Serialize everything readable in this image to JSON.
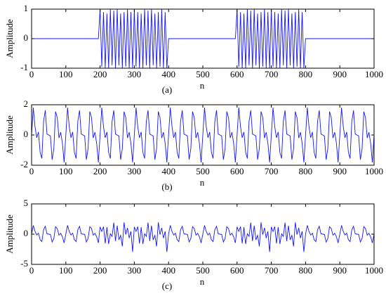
{
  "chart_data": [
    {
      "type": "line",
      "caption": "(a)",
      "x_label": "n",
      "y_label": "Amplitude",
      "color": "#1414ff",
      "xlim": [
        0,
        1000
      ],
      "xticks": [
        0,
        100,
        200,
        300,
        400,
        500,
        600,
        700,
        800,
        900,
        1000
      ],
      "ylim": [
        -1,
        1
      ],
      "yticks": [
        -1,
        0,
        1
      ],
      "x": [
        0,
        5,
        10,
        15,
        20,
        25,
        30,
        35,
        40,
        45,
        50,
        55,
        60,
        65,
        70,
        75,
        80,
        85,
        90,
        95,
        100,
        105,
        110,
        115,
        120,
        125,
        130,
        135,
        140,
        145,
        150,
        155,
        160,
        165,
        170,
        175,
        180,
        185,
        190,
        195,
        200,
        205,
        210,
        215,
        220,
        225,
        230,
        235,
        240,
        245,
        250,
        255,
        260,
        265,
        270,
        275,
        280,
        285,
        290,
        295,
        300,
        305,
        310,
        315,
        320,
        325,
        330,
        335,
        340,
        345,
        350,
        355,
        360,
        365,
        370,
        375,
        380,
        385,
        390,
        395,
        400,
        405,
        410,
        415,
        420,
        425,
        430,
        435,
        440,
        445,
        450,
        455,
        460,
        465,
        470,
        475,
        480,
        485,
        490,
        495,
        500,
        505,
        510,
        515,
        520,
        525,
        530,
        535,
        540,
        545,
        550,
        555,
        560,
        565,
        570,
        575,
        580,
        585,
        590,
        595,
        600,
        605,
        610,
        615,
        620,
        625,
        630,
        635,
        640,
        645,
        650,
        655,
        660,
        665,
        670,
        675,
        680,
        685,
        690,
        695,
        700,
        705,
        710,
        715,
        720,
        725,
        730,
        735,
        740,
        745,
        750,
        755,
        760,
        765,
        770,
        775,
        780,
        785,
        790,
        795,
        800,
        805,
        810,
        815,
        820,
        825,
        830,
        835,
        840,
        845,
        850,
        855,
        860,
        865,
        870,
        875,
        880,
        885,
        890,
        895,
        900,
        905,
        910,
        915,
        920,
        925,
        930,
        935,
        940,
        945,
        950,
        955,
        960,
        965,
        970,
        975,
        980,
        985,
        990,
        995,
        1000
      ],
      "values": [
        0,
        0,
        0,
        0,
        0,
        0,
        0,
        0,
        0,
        0,
        0,
        0,
        0,
        0,
        0,
        0,
        0,
        0,
        0,
        0,
        0,
        0,
        0,
        0,
        0,
        0,
        0,
        0,
        0,
        0,
        0,
        0,
        0,
        0,
        0,
        0,
        0,
        0,
        0,
        0,
        1,
        -0.95,
        0.9,
        -1,
        0.85,
        -1,
        1,
        -0.9,
        0.95,
        -1,
        1,
        -0.9,
        0.85,
        -1,
        0.9,
        -0.95,
        1,
        -1,
        0.9,
        -1,
        1,
        -0.95,
        0.9,
        -1,
        0.85,
        -1,
        1,
        -0.9,
        0.95,
        -1,
        1,
        -0.9,
        0.85,
        -1,
        0.9,
        -0.95,
        1,
        -1,
        0.9,
        -1,
        0,
        0,
        0,
        0,
        0,
        0,
        0,
        0,
        0,
        0,
        0,
        0,
        0,
        0,
        0,
        0,
        0,
        0,
        0,
        0,
        0,
        0,
        0,
        0,
        0,
        0,
        0,
        0,
        0,
        0,
        0,
        0,
        0,
        0,
        0,
        0,
        0,
        0,
        0,
        0,
        1,
        -0.95,
        0.9,
        -1,
        0.85,
        -1,
        1,
        -0.9,
        0.95,
        -1,
        1,
        -0.9,
        0.85,
        -1,
        0.9,
        -0.95,
        1,
        -1,
        0.9,
        -1,
        1,
        -0.95,
        0.9,
        -1,
        0.85,
        -1,
        1,
        -0.9,
        0.95,
        -1,
        1,
        -0.9,
        0.85,
        -1,
        0.9,
        -0.95,
        1,
        -1,
        0.9,
        -1,
        0,
        0,
        0,
        0,
        0,
        0,
        0,
        0,
        0,
        0,
        0,
        0,
        0,
        0,
        0,
        0,
        0,
        0,
        0,
        0,
        0,
        0,
        0,
        0,
        0,
        0,
        0,
        0,
        0,
        0,
        0,
        0,
        0,
        0,
        0,
        0,
        0,
        0,
        0,
        0,
        0
      ]
    },
    {
      "type": "line",
      "caption": "(b)",
      "x_label": "n",
      "y_label": "Amplitude",
      "color": "#1414ff",
      "xlim": [
        0,
        1000
      ],
      "xticks": [
        0,
        100,
        200,
        300,
        400,
        500,
        600,
        700,
        800,
        900,
        1000
      ],
      "ylim": [
        -2,
        2
      ],
      "yticks": [
        -2,
        0,
        2
      ],
      "x": [
        0,
        5,
        10,
        15,
        20,
        25,
        30,
        35,
        40,
        45,
        50,
        55,
        60,
        65,
        70,
        75,
        80,
        85,
        90,
        95,
        100,
        105,
        110,
        115,
        120,
        125,
        130,
        135,
        140,
        145,
        150,
        155,
        160,
        165,
        170,
        175,
        180,
        185,
        190,
        195,
        200,
        205,
        210,
        215,
        220,
        225,
        230,
        235,
        240,
        245,
        250,
        255,
        260,
        265,
        270,
        275,
        280,
        285,
        290,
        295,
        300,
        305,
        310,
        315,
        320,
        325,
        330,
        335,
        340,
        345,
        350,
        355,
        360,
        365,
        370,
        375,
        380,
        385,
        390,
        395,
        400,
        405,
        410,
        415,
        420,
        425,
        430,
        435,
        440,
        445,
        450,
        455,
        460,
        465,
        470,
        475,
        480,
        485,
        490,
        495,
        500,
        505,
        510,
        515,
        520,
        525,
        530,
        535,
        540,
        545,
        550,
        555,
        560,
        565,
        570,
        575,
        580,
        585,
        590,
        595,
        600,
        605,
        610,
        615,
        620,
        625,
        630,
        635,
        640,
        645,
        650,
        655,
        660,
        665,
        670,
        675,
        680,
        685,
        690,
        695,
        700,
        705,
        710,
        715,
        720,
        725,
        730,
        735,
        740,
        745,
        750,
        755,
        760,
        765,
        770,
        775,
        780,
        785,
        790,
        795,
        800,
        805,
        810,
        815,
        820,
        825,
        830,
        835,
        840,
        845,
        850,
        855,
        860,
        865,
        870,
        875,
        880,
        885,
        890,
        895,
        900,
        905,
        910,
        915,
        920,
        925,
        930,
        935,
        940,
        945,
        950,
        955,
        960,
        965,
        970,
        975,
        980,
        985,
        990,
        995,
        1000
      ],
      "values": [
        0,
        1.81,
        0.55,
        -0.18,
        0.2,
        -1.15,
        -1.55,
        0.9,
        1.63,
        0.06,
        0,
        -0.06,
        -1.63,
        -0.9,
        1.55,
        1.15,
        -0.2,
        0.18,
        -0.55,
        -1.81,
        0,
        1.81,
        0.55,
        -0.18,
        0.2,
        -1.15,
        -1.55,
        0.9,
        1.63,
        0.06,
        0,
        -0.06,
        -1.63,
        -0.9,
        1.55,
        1.15,
        -0.2,
        0.18,
        -0.55,
        -1.81,
        0,
        1.81,
        0.55,
        -0.18,
        0.2,
        -1.15,
        -1.55,
        0.9,
        1.63,
        0.06,
        0,
        -0.06,
        -1.63,
        -0.9,
        1.55,
        1.15,
        -0.2,
        0.18,
        -0.55,
        -1.81,
        0,
        1.81,
        0.55,
        -0.18,
        0.2,
        -1.15,
        -1.55,
        0.9,
        1.63,
        0.06,
        0,
        -0.06,
        -1.63,
        -0.9,
        1.55,
        1.15,
        -0.2,
        0.18,
        -0.55,
        -1.81,
        0,
        1.81,
        0.55,
        -0.18,
        0.2,
        -1.15,
        -1.55,
        0.9,
        1.63,
        0.06,
        0,
        -0.06,
        -1.63,
        -0.9,
        1.55,
        1.15,
        -0.2,
        0.18,
        -0.55,
        -1.81,
        0,
        1.81,
        0.55,
        -0.18,
        0.2,
        -1.15,
        -1.55,
        0.9,
        1.63,
        0.06,
        0,
        -0.06,
        -1.63,
        -0.9,
        1.55,
        1.15,
        -0.2,
        0.18,
        -0.55,
        -1.81,
        0,
        1.81,
        0.55,
        -0.18,
        0.2,
        -1.15,
        -1.55,
        0.9,
        1.63,
        0.06,
        0,
        -0.06,
        -1.63,
        -0.9,
        1.55,
        1.15,
        -0.2,
        0.18,
        -0.55,
        -1.81,
        0,
        1.81,
        0.55,
        -0.18,
        0.2,
        -1.15,
        -1.55,
        0.9,
        1.63,
        0.06,
        0,
        -0.06,
        -1.63,
        -0.9,
        1.55,
        1.15,
        -0.2,
        0.18,
        -0.55,
        -1.81,
        0,
        1.81,
        0.55,
        -0.18,
        0.2,
        -1.15,
        -1.55,
        0.9,
        1.63,
        0.06,
        0,
        -0.06,
        -1.63,
        -0.9,
        1.55,
        1.15,
        -0.2,
        0.18,
        -0.55,
        -1.81,
        0,
        1.81,
        0.55,
        -0.18,
        0.2,
        -1.15,
        -1.55,
        0.9,
        1.63,
        0.06,
        0,
        -0.06,
        -1.63,
        -0.9,
        1.55,
        1.15,
        -0.2,
        0.18,
        -0.55,
        -1.81,
        0
      ]
    },
    {
      "type": "line",
      "caption": "(c)",
      "x_label": "n",
      "y_label": "Amplitude",
      "color": "#1414ff",
      "xlim": [
        0,
        1000
      ],
      "xticks": [
        0,
        100,
        200,
        300,
        400,
        500,
        600,
        700,
        800,
        900,
        1000
      ],
      "ylim": [
        -5,
        5
      ],
      "yticks": [
        -5,
        0,
        5
      ],
      "x": [
        0,
        5,
        10,
        15,
        20,
        25,
        30,
        35,
        40,
        45,
        50,
        55,
        60,
        65,
        70,
        75,
        80,
        85,
        90,
        95,
        100,
        105,
        110,
        115,
        120,
        125,
        130,
        135,
        140,
        145,
        150,
        155,
        160,
        165,
        170,
        175,
        180,
        185,
        190,
        195,
        200,
        205,
        210,
        215,
        220,
        225,
        230,
        235,
        240,
        245,
        250,
        255,
        260,
        265,
        270,
        275,
        280,
        285,
        290,
        295,
        300,
        305,
        310,
        315,
        320,
        325,
        330,
        335,
        340,
        345,
        350,
        355,
        360,
        365,
        370,
        375,
        380,
        385,
        390,
        395,
        400,
        405,
        410,
        415,
        420,
        425,
        430,
        435,
        440,
        445,
        450,
        455,
        460,
        465,
        470,
        475,
        480,
        485,
        490,
        495,
        500,
        505,
        510,
        515,
        520,
        525,
        530,
        535,
        540,
        545,
        550,
        555,
        560,
        565,
        570,
        575,
        580,
        585,
        590,
        595,
        600,
        605,
        610,
        615,
        620,
        625,
        630,
        635,
        640,
        645,
        650,
        655,
        660,
        665,
        670,
        675,
        680,
        685,
        690,
        695,
        700,
        705,
        710,
        715,
        720,
        725,
        730,
        735,
        740,
        745,
        750,
        755,
        760,
        765,
        770,
        775,
        780,
        785,
        790,
        795,
        800,
        805,
        810,
        815,
        820,
        825,
        830,
        835,
        840,
        845,
        850,
        855,
        860,
        865,
        870,
        875,
        880,
        885,
        890,
        895,
        900,
        905,
        910,
        915,
        920,
        925,
        930,
        935,
        940,
        945,
        950,
        955,
        960,
        965,
        970,
        975,
        980,
        985,
        990,
        995,
        1000
      ],
      "values": [
        0,
        1.45,
        0.44,
        -0.14,
        0.16,
        -0.92,
        -1.24,
        0.72,
        1.3,
        0.05,
        0,
        -0.05,
        -1.3,
        -0.72,
        1.24,
        0.92,
        -0.16,
        0.14,
        -0.44,
        -1.45,
        0,
        1.45,
        0.44,
        -0.14,
        0.16,
        -0.92,
        -1.24,
        0.72,
        1.3,
        0.05,
        0,
        -0.05,
        -1.3,
        -0.72,
        1.24,
        0.92,
        -0.16,
        0.14,
        -0.44,
        -1.45,
        1.2,
        0.45,
        1.24,
        -1.54,
        1.16,
        -1.62,
        0.06,
        -0.38,
        1.9,
        -1.15,
        1.4,
        -0.95,
        -0.2,
        -2.02,
        1.94,
        -0.08,
        1.04,
        -0.66,
        0.46,
        -2.95,
        1.2,
        0.45,
        1.24,
        -1.54,
        1.16,
        -1.62,
        0.06,
        -0.38,
        1.9,
        -1.15,
        1.4,
        -0.95,
        -0.2,
        -2.02,
        1.94,
        -0.08,
        1.04,
        -0.66,
        0.46,
        -2.95,
        0,
        1.45,
        0.44,
        -0.14,
        0.16,
        -0.92,
        -1.24,
        0.72,
        1.3,
        0.05,
        0,
        -0.05,
        -1.3,
        -0.72,
        1.24,
        0.92,
        -0.16,
        0.14,
        -0.44,
        -1.45,
        0,
        1.45,
        0.44,
        -0.14,
        0.16,
        -0.92,
        -1.24,
        0.72,
        1.3,
        0.05,
        0,
        -0.05,
        -1.3,
        -0.72,
        1.24,
        0.92,
        -0.16,
        0.14,
        -0.44,
        -1.45,
        1.2,
        0.45,
        1.24,
        -1.54,
        1.16,
        -1.62,
        0.06,
        -0.38,
        1.9,
        -1.15,
        1.4,
        -0.95,
        -0.2,
        -2.02,
        1.94,
        -0.08,
        1.04,
        -0.66,
        0.46,
        -2.95,
        1.2,
        0.45,
        1.24,
        -1.54,
        1.16,
        -1.62,
        0.06,
        -0.38,
        1.9,
        -1.15,
        1.4,
        -0.95,
        -0.2,
        -2.02,
        1.94,
        -0.08,
        1.04,
        -0.66,
        0.46,
        -2.95,
        0,
        1.45,
        0.44,
        -0.14,
        0.16,
        -0.92,
        -1.24,
        0.72,
        1.3,
        0.05,
        0,
        -0.05,
        -1.3,
        -0.72,
        1.24,
        0.92,
        -0.16,
        0.14,
        -0.44,
        -1.45,
        0,
        1.45,
        0.44,
        -0.14,
        0.16,
        -0.92,
        -1.24,
        0.72,
        1.3,
        0.05,
        0,
        -0.05,
        -1.3,
        -0.72,
        1.24,
        0.92,
        -0.16,
        0.14,
        -0.44,
        -1.45,
        0
      ]
    }
  ]
}
